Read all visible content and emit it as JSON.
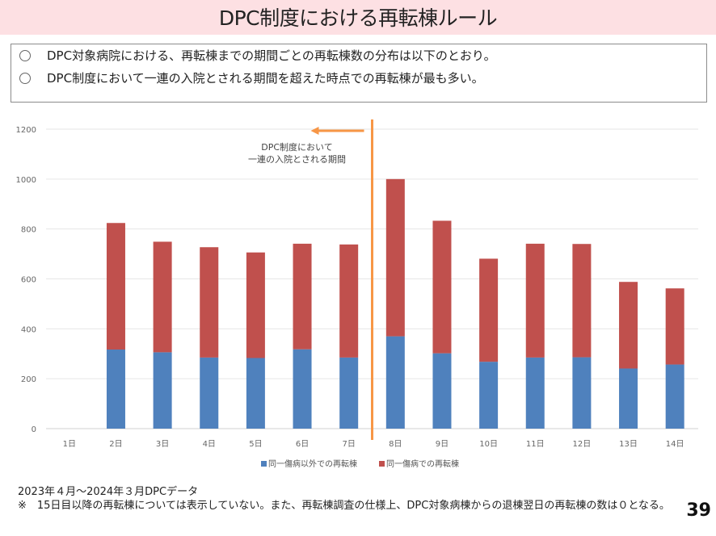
{
  "header": {
    "title": "DPC制度における再転棟ルール"
  },
  "summary": {
    "bullets": [
      "DPC対象病院における、再転棟までの期間ごとの再転棟数の分布は以下のとおり。",
      "DPC制度において一連の入院とされる期間を超えた時点での再転棟が最も多い。"
    ]
  },
  "chart_data": {
    "type": "bar",
    "stacked": true,
    "title": "",
    "xlabel": "",
    "ylabel": "",
    "categories": [
      "1日",
      "2日",
      "3日",
      "4日",
      "5日",
      "6日",
      "7日",
      "8日",
      "9日",
      "10日",
      "11日",
      "12日",
      "13日",
      "14日"
    ],
    "series": [
      {
        "name": "同一傷病以外での再転棟",
        "color": "#4f81bd",
        "values": [
          0,
          317,
          306,
          285,
          283,
          318,
          285,
          370,
          302,
          268,
          285,
          286,
          241,
          257
        ]
      },
      {
        "name": "同一傷病での再転棟",
        "color": "#c0504d",
        "values": [
          0,
          507,
          443,
          442,
          423,
          423,
          453,
          630,
          531,
          413,
          456,
          454,
          347,
          305
        ]
      }
    ],
    "totals": [
      0,
      824,
      749,
      727,
      706,
      741,
      738,
      1000,
      833,
      681,
      741,
      740,
      588,
      562
    ],
    "ylim": [
      0,
      1200
    ],
    "yticks": [
      "0",
      "200",
      "400",
      "600",
      "800",
      "1000",
      "1200"
    ],
    "ytick_values": [
      0,
      200,
      400,
      600,
      800,
      1000,
      1200
    ],
    "grid": true,
    "legend": "bottom",
    "annotation": {
      "text_line1": "DPC制度において",
      "text_line2": "一連の入院とされる期間",
      "divider_between": [
        "7日",
        "8日"
      ],
      "arrow_direction": "left",
      "color": "#f79646"
    }
  },
  "notes": {
    "data_period": "2023年４月～2024年３月DPCデータ",
    "footnote": "※　15日目以降の再転棟については表示していない。また、再転棟調査の仕様上、DPC対象病棟からの退棟翌日の再転棟の数は０となる。"
  },
  "page_number": "39"
}
